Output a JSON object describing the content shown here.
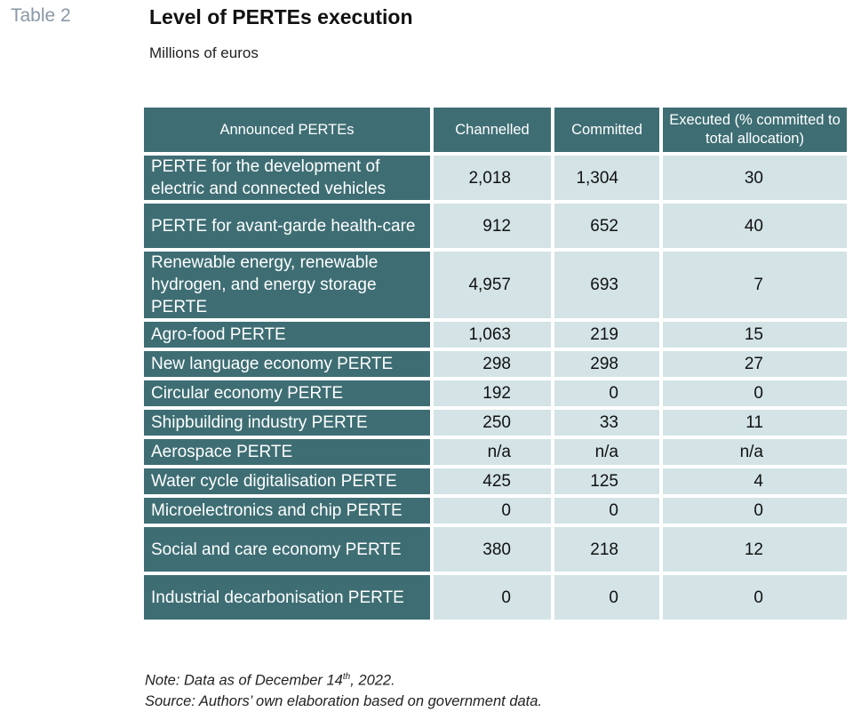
{
  "table_label": "Table 2",
  "title": "Level of PERTEs execution",
  "subtitle": "Millions of euros",
  "columns": [
    "Announced PERTEs",
    "Channelled",
    "Committed",
    "Executed (% committed to total allocation)"
  ],
  "rows": [
    {
      "name": "PERTE for the development of electric and connected vehicles",
      "channelled": "2,018",
      "committed": "1,304",
      "executed": "30"
    },
    {
      "name": "PERTE for avant-garde health-care",
      "channelled": "912",
      "committed": "652",
      "executed": "40"
    },
    {
      "name": "Renewable energy, renewable hydrogen, and energy storage PERTE",
      "channelled": "4,957",
      "committed": "693",
      "executed": "7"
    },
    {
      "name": "Agro-food PERTE",
      "channelled": "1,063",
      "committed": "219",
      "executed": "15"
    },
    {
      "name": "New language economy PERTE",
      "channelled": "298",
      "committed": "298",
      "executed": "27"
    },
    {
      "name": "Circular economy PERTE",
      "channelled": "192",
      "committed": "0",
      "executed": "0"
    },
    {
      "name": "Shipbuilding industry PERTE",
      "channelled": "250",
      "committed": "33",
      "executed": "11"
    },
    {
      "name": "Aerospace PERTE",
      "channelled": "n/a",
      "committed": "n/a",
      "executed": "n/a"
    },
    {
      "name": "Water cycle digitalisation PERTE",
      "channelled": "425",
      "committed": "125",
      "executed": "4"
    },
    {
      "name": "Microelectronics and chip PERTE",
      "channelled": "0",
      "committed": "0",
      "executed": "0"
    },
    {
      "name": "Social and care economy PERTE",
      "channelled": "380",
      "committed": "218",
      "executed": "12"
    },
    {
      "name": "Industrial decarbonisation PERTE",
      "channelled": "0",
      "committed": "0",
      "executed": "0"
    }
  ],
  "note": {
    "prefix": "Note: Data as of December 14",
    "sup": "th",
    "suffix": ", 2022."
  },
  "source": "Source: Authors’ own elaboration based on government data.",
  "colors": {
    "header_bg": "#3e6e74",
    "cell_bg": "#d3e3e6",
    "label_gray": "#8a98a6"
  }
}
